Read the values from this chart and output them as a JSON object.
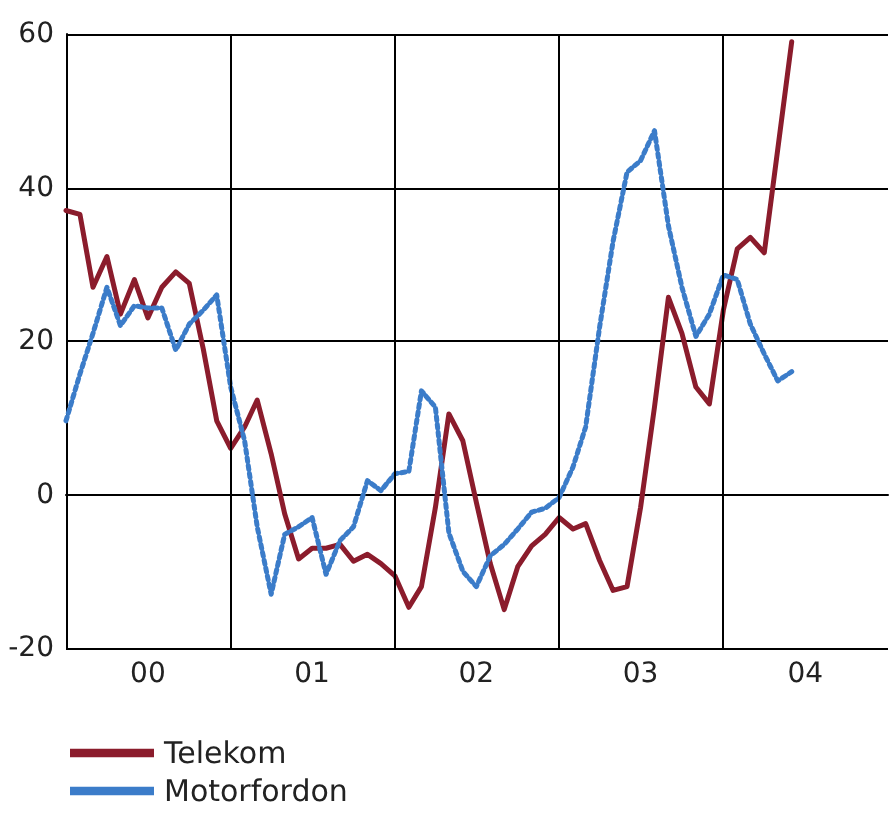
{
  "chart_data": {
    "type": "line",
    "x": [
      "2000-01",
      "2000-02",
      "2000-03",
      "2000-04",
      "2000-05",
      "2000-06",
      "2000-07",
      "2000-08",
      "2000-09",
      "2000-10",
      "2000-11",
      "2000-12",
      "2001-01",
      "2001-02",
      "2001-03",
      "2001-04",
      "2001-05",
      "2001-06",
      "2001-07",
      "2001-08",
      "2001-09",
      "2001-10",
      "2001-11",
      "2001-12",
      "2002-01",
      "2002-02",
      "2002-03",
      "2002-04",
      "2002-05",
      "2002-06",
      "2002-07",
      "2002-08",
      "2002-09",
      "2002-10",
      "2002-11",
      "2002-12",
      "2003-01",
      "2003-02",
      "2003-03",
      "2003-04",
      "2003-05",
      "2003-06",
      "2003-07",
      "2003-08",
      "2003-09",
      "2003-10",
      "2003-11",
      "2003-12",
      "2004-01",
      "2004-02",
      "2004-03",
      "2004-04",
      "2004-05",
      "2004-06"
    ],
    "series": [
      {
        "name": "Telekom",
        "color": "#8b1c2c",
        "line_style": "solid",
        "values": [
          37,
          36.5,
          27,
          31,
          23.5,
          28,
          23,
          27,
          29,
          27.5,
          19,
          9.6,
          6,
          8.8,
          12.3,
          5.3,
          -2.5,
          -8.4,
          -7,
          -7,
          -6.5,
          -8.7,
          -7.8,
          -9,
          -10.6,
          -14.7,
          -12,
          -1.7,
          10.5,
          7,
          -1,
          -9,
          -15,
          -9.4,
          -6.7,
          -5.2,
          -3,
          -4.5,
          -3.8,
          -8.6,
          -12.5,
          -12,
          -1.7,
          11.4,
          25.7,
          21,
          14,
          11.8,
          24,
          32,
          33.5,
          31.5,
          45,
          59
        ]
      },
      {
        "name": "Motorfordon",
        "color": "#3b7cc9",
        "line_style": "dotted",
        "values": [
          9.6,
          15.7,
          21,
          27,
          22,
          24.6,
          24.3,
          24.3,
          18.8,
          22.2,
          24,
          26,
          14,
          7,
          -4.2,
          -13,
          -5.2,
          -4.2,
          -3,
          -10.4,
          -6,
          -4.2,
          1.8,
          0.5,
          2.7,
          3,
          13.5,
          11.4,
          -5,
          -10,
          -12,
          -8,
          -6.5,
          -4.5,
          -2.3,
          -1.8,
          -0.4,
          3.6,
          8.8,
          21.8,
          33,
          42,
          43.5,
          47.4,
          35,
          27,
          20.6,
          23.5,
          28.6,
          28,
          22.2,
          18.3,
          14.8,
          16
        ]
      }
    ],
    "xlim": [
      "2000-01",
      "2005-01"
    ],
    "xticks": [
      {
        "value": "2000-07",
        "label": "00"
      },
      {
        "value": "2001-07",
        "label": "01"
      },
      {
        "value": "2002-07",
        "label": "02"
      },
      {
        "value": "2003-07",
        "label": "03"
      },
      {
        "value": "2004-07",
        "label": "04"
      }
    ],
    "ylim": [
      -20,
      60
    ],
    "yticks": [
      -20,
      0,
      20,
      40,
      60
    ],
    "ref_lines": [
      {
        "axis": "x",
        "value": "2001-01",
        "color": "#000000"
      },
      {
        "axis": "x",
        "value": "2002-01",
        "color": "#000000"
      },
      {
        "axis": "x",
        "value": "2003-01",
        "color": "#000000"
      },
      {
        "axis": "x",
        "value": "2004-01",
        "color": "#000000"
      }
    ],
    "grid": "y",
    "legend": "bottom left",
    "marker": "none"
  }
}
